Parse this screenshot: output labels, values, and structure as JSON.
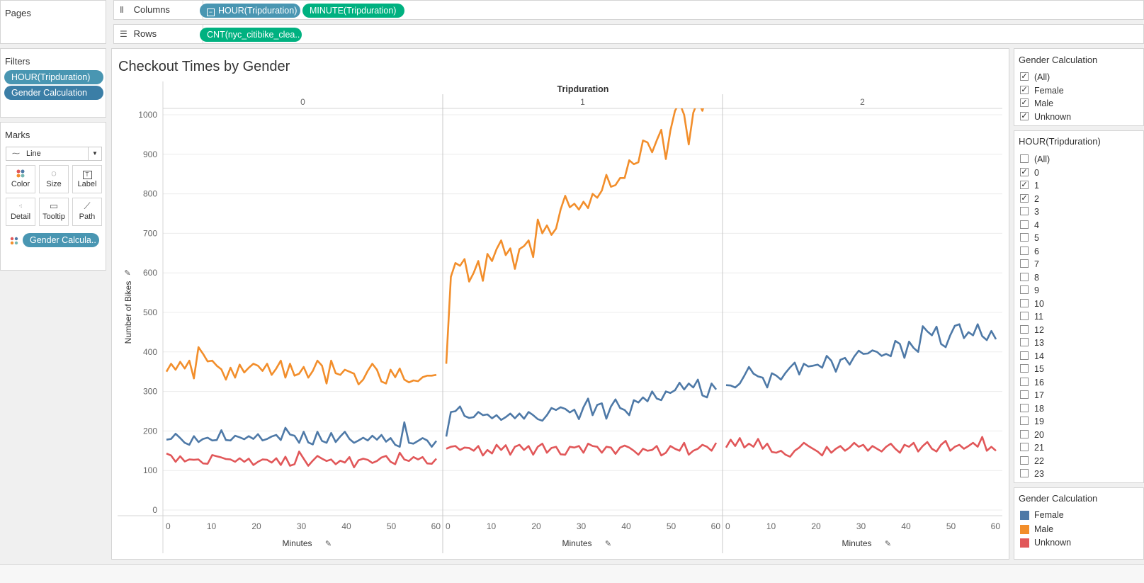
{
  "pages": {
    "title": "Pages"
  },
  "columns_shelf": {
    "label": "Columns",
    "icon": "columns-icon",
    "pills": [
      "HOUR(Tripduration)",
      "MINUTE(Tripduration)"
    ]
  },
  "rows_shelf": {
    "label": "Rows",
    "icon": "rows-icon",
    "pills": [
      "CNT(nyc_citibike_clea.."
    ]
  },
  "filters": {
    "title": "Filters",
    "items": [
      "HOUR(Tripduration)",
      "Gender Calculation"
    ]
  },
  "marks": {
    "title": "Marks",
    "type": "Line",
    "buttons": [
      {
        "label": "Color",
        "icon": "color-icon"
      },
      {
        "label": "Size",
        "icon": "size-icon"
      },
      {
        "label": "Label",
        "icon": "label-icon"
      },
      {
        "label": "Detail",
        "icon": "detail-icon"
      },
      {
        "label": "Tooltip",
        "icon": "tooltip-icon"
      },
      {
        "label": "Path",
        "icon": "path-icon"
      }
    ],
    "color_pill": "Gender Calcula.."
  },
  "gender_filter": {
    "title": "Gender Calculation",
    "options": [
      {
        "label": "(All)",
        "checked": true
      },
      {
        "label": "Female",
        "checked": true
      },
      {
        "label": "Male",
        "checked": true
      },
      {
        "label": "Unknown",
        "checked": true
      }
    ]
  },
  "hour_filter": {
    "title": "HOUR(Tripduration)",
    "options": [
      {
        "label": "(All)",
        "checked": false
      },
      {
        "label": "0",
        "checked": true
      },
      {
        "label": "1",
        "checked": true
      },
      {
        "label": "2",
        "checked": true
      },
      {
        "label": "3",
        "checked": false
      },
      {
        "label": "4",
        "checked": false
      },
      {
        "label": "5",
        "checked": false
      },
      {
        "label": "6",
        "checked": false
      },
      {
        "label": "7",
        "checked": false
      },
      {
        "label": "8",
        "checked": false
      },
      {
        "label": "9",
        "checked": false
      },
      {
        "label": "10",
        "checked": false
      },
      {
        "label": "11",
        "checked": false
      },
      {
        "label": "12",
        "checked": false
      },
      {
        "label": "13",
        "checked": false
      },
      {
        "label": "14",
        "checked": false
      },
      {
        "label": "15",
        "checked": false
      },
      {
        "label": "16",
        "checked": false
      },
      {
        "label": "17",
        "checked": false
      },
      {
        "label": "18",
        "checked": false
      },
      {
        "label": "19",
        "checked": false
      },
      {
        "label": "20",
        "checked": false
      },
      {
        "label": "21",
        "checked": false
      },
      {
        "label": "22",
        "checked": false
      },
      {
        "label": "23",
        "checked": false
      }
    ]
  },
  "legend": {
    "title": "Gender Calculation",
    "items": [
      {
        "label": "Female",
        "color": "#4e79a7"
      },
      {
        "label": "Male",
        "color": "#f28e2b"
      },
      {
        "label": "Unknown",
        "color": "#e15759"
      }
    ]
  },
  "chart_data": {
    "type": "line",
    "title": "Checkout Times by Gender",
    "column_header": "Tripduration",
    "panels": [
      "0",
      "1",
      "2"
    ],
    "xlabel": "Minutes",
    "ylabel": "Number of Bikes",
    "xlim": [
      0,
      60
    ],
    "ylim": [
      0,
      1000
    ],
    "yticks": [
      0,
      100,
      200,
      300,
      400,
      500,
      600,
      700,
      800,
      900,
      1000
    ],
    "xticks": [
      0,
      10,
      20,
      30,
      40,
      50,
      60
    ],
    "series": [
      {
        "name": "Female",
        "color": "#4e79a7",
        "panels": [
          [
            178,
            180,
            193,
            182,
            170,
            165,
            187,
            172,
            180,
            183,
            176,
            177,
            202,
            177,
            176,
            188,
            184,
            179,
            187,
            180,
            192,
            176,
            180,
            186,
            190,
            177,
            208,
            191,
            188,
            170,
            198,
            171,
            166,
            198,
            175,
            170,
            195,
            172,
            186,
            198,
            180,
            170,
            176,
            183,
            176,
            188,
            178,
            190,
            173,
            182,
            165,
            160,
            222,
            170,
            168,
            175,
            182,
            176,
            160,
            175
          ],
          [
            186,
            248,
            250,
            262,
            238,
            233,
            235,
            248,
            240,
            242,
            232,
            240,
            228,
            235,
            244,
            232,
            244,
            231,
            248,
            240,
            230,
            226,
            240,
            258,
            253,
            260,
            256,
            247,
            254,
            230,
            260,
            282,
            240,
            266,
            270,
            231,
            262,
            280,
            258,
            253,
            240,
            278,
            272,
            285,
            275,
            300,
            282,
            278,
            300,
            296,
            303,
            322,
            305,
            320,
            310,
            330,
            290,
            285,
            320,
            305
          ],
          [
            316,
            315,
            310,
            320,
            340,
            362,
            345,
            338,
            335,
            310,
            346,
            340,
            330,
            347,
            361,
            373,
            343,
            370,
            363,
            365,
            368,
            360,
            390,
            378,
            350,
            380,
            385,
            368,
            388,
            403,
            395,
            396,
            404,
            400,
            390,
            395,
            389,
            428,
            420,
            385,
            426,
            410,
            400,
            465,
            452,
            442,
            464,
            420,
            412,
            442,
            466,
            470,
            435,
            450,
            442,
            470,
            440,
            430,
            453,
            432
          ]
        ]
      },
      {
        "name": "Male",
        "color": "#f28e2b",
        "panels": [
          [
            350,
            370,
            355,
            375,
            358,
            378,
            333,
            412,
            395,
            376,
            378,
            365,
            356,
            330,
            360,
            335,
            368,
            348,
            360,
            370,
            365,
            352,
            370,
            342,
            358,
            378,
            335,
            370,
            340,
            345,
            362,
            335,
            352,
            378,
            365,
            320,
            378,
            346,
            342,
            355,
            350,
            345,
            318,
            330,
            352,
            370,
            355,
            325,
            320,
            355,
            336,
            358,
            330,
            323,
            328,
            326,
            336,
            340,
            340,
            342
          ],
          [
            370,
            590,
            625,
            618,
            635,
            578,
            600,
            630,
            580,
            648,
            630,
            660,
            682,
            645,
            662,
            610,
            660,
            668,
            682,
            640,
            735,
            700,
            720,
            696,
            712,
            760,
            795,
            766,
            775,
            760,
            780,
            764,
            800,
            790,
            808,
            848,
            818,
            822,
            840,
            840,
            885,
            875,
            880,
            935,
            930,
            905,
            935,
            962,
            888,
            960,
            1010,
            1030,
            1000,
            925,
            1005,
            1035,
            1010,
            1050,
            1020,
            1060
          ],
          null
        ]
      },
      {
        "name": "Unknown",
        "color": "#e15759",
        "panels": [
          [
            143,
            138,
            122,
            136,
            123,
            128,
            127,
            128,
            118,
            117,
            139,
            136,
            133,
            129,
            128,
            122,
            131,
            122,
            130,
            114,
            122,
            128,
            127,
            120,
            131,
            114,
            135,
            112,
            116,
            148,
            130,
            112,
            125,
            137,
            130,
            124,
            128,
            116,
            125,
            120,
            134,
            108,
            126,
            130,
            127,
            119,
            124,
            133,
            137,
            122,
            116,
            145,
            128,
            124,
            134,
            128,
            134,
            118,
            117,
            130
          ],
          [
            155,
            160,
            162,
            152,
            158,
            157,
            150,
            162,
            138,
            152,
            143,
            165,
            152,
            164,
            140,
            160,
            165,
            152,
            162,
            140,
            160,
            168,
            145,
            157,
            160,
            141,
            140,
            160,
            158,
            162,
            145,
            168,
            162,
            160,
            145,
            160,
            158,
            142,
            158,
            163,
            158,
            150,
            140,
            155,
            150,
            152,
            162,
            138,
            145,
            162,
            155,
            150,
            170,
            140,
            150,
            155,
            165,
            160,
            150,
            170
          ],
          [
            158,
            178,
            162,
            182,
            158,
            168,
            160,
            180,
            155,
            168,
            147,
            145,
            150,
            140,
            135,
            150,
            158,
            170,
            162,
            155,
            148,
            138,
            160,
            145,
            155,
            162,
            150,
            158,
            170,
            160,
            165,
            150,
            162,
            155,
            148,
            160,
            168,
            155,
            145,
            165,
            160,
            170,
            148,
            162,
            172,
            155,
            148,
            165,
            175,
            150,
            160,
            165,
            155,
            162,
            170,
            160,
            185,
            150,
            160,
            150
          ]
        ]
      }
    ]
  }
}
